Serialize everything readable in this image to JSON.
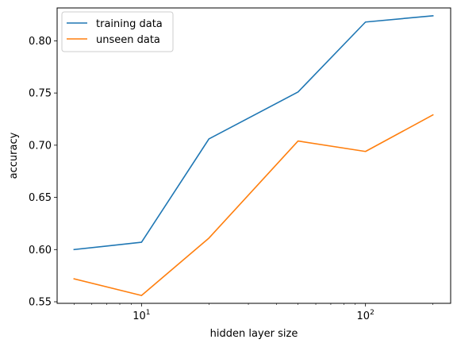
{
  "chart_data": {
    "type": "line",
    "title": "",
    "xlabel": "hidden layer size",
    "ylabel": "accuracy",
    "xscale": "log",
    "x": [
      5,
      10,
      20,
      50,
      100,
      200
    ],
    "xlim": [
      4.2,
      240
    ],
    "ylim": [
      0.5485,
      0.8315
    ],
    "grid": false,
    "legend_position": "upper left",
    "x_ticks": [
      {
        "value": 10,
        "base": "10",
        "exp": "1"
      },
      {
        "value": 100,
        "base": "10",
        "exp": "2"
      }
    ],
    "y_ticks": [
      {
        "value": 0.55,
        "label": "0.55"
      },
      {
        "value": 0.6,
        "label": "0.60"
      },
      {
        "value": 0.65,
        "label": "0.65"
      },
      {
        "value": 0.7,
        "label": "0.70"
      },
      {
        "value": 0.75,
        "label": "0.75"
      },
      {
        "value": 0.8,
        "label": "0.80"
      }
    ],
    "series": [
      {
        "name": "training data",
        "color": "#1f77b4",
        "values": [
          0.6,
          0.607,
          0.706,
          0.751,
          0.818,
          0.824
        ]
      },
      {
        "name": "unseen data",
        "color": "#ff7f0e",
        "values": [
          0.572,
          0.556,
          0.611,
          0.704,
          0.694,
          0.729
        ]
      }
    ]
  }
}
